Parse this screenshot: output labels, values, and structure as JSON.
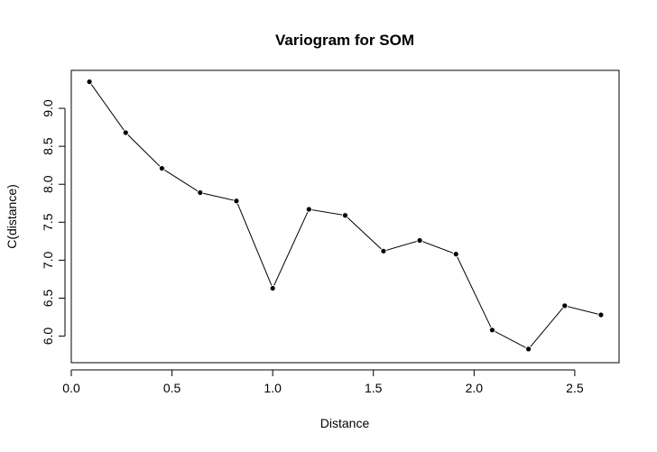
{
  "chart_data": {
    "type": "line",
    "title": "Variogram for SOM",
    "xlabel": "Distance",
    "ylabel": "C(distance)",
    "xlim": [
      0.0,
      2.72
    ],
    "ylim": [
      5.65,
      9.5
    ],
    "xticks": [
      "0.0",
      "0.5",
      "1.0",
      "1.5",
      "2.0",
      "2.5"
    ],
    "yticks": [
      "6.0",
      "6.5",
      "7.0",
      "7.5",
      "8.0",
      "8.5",
      "9.0"
    ],
    "grid": false,
    "series": [
      {
        "x": [
          0.09,
          0.27,
          0.45,
          0.64,
          0.82,
          1.0,
          1.18,
          1.36,
          1.55,
          1.73,
          1.91,
          2.09,
          2.27,
          2.45,
          2.63
        ],
        "y": [
          9.35,
          8.68,
          8.21,
          7.89,
          7.78,
          6.63,
          7.67,
          7.59,
          7.12,
          7.26,
          7.08,
          6.08,
          5.83,
          6.4,
          6.28
        ]
      }
    ],
    "colors": {
      "line": "#000000",
      "marker": "#000000",
      "axis": "#000000"
    }
  }
}
